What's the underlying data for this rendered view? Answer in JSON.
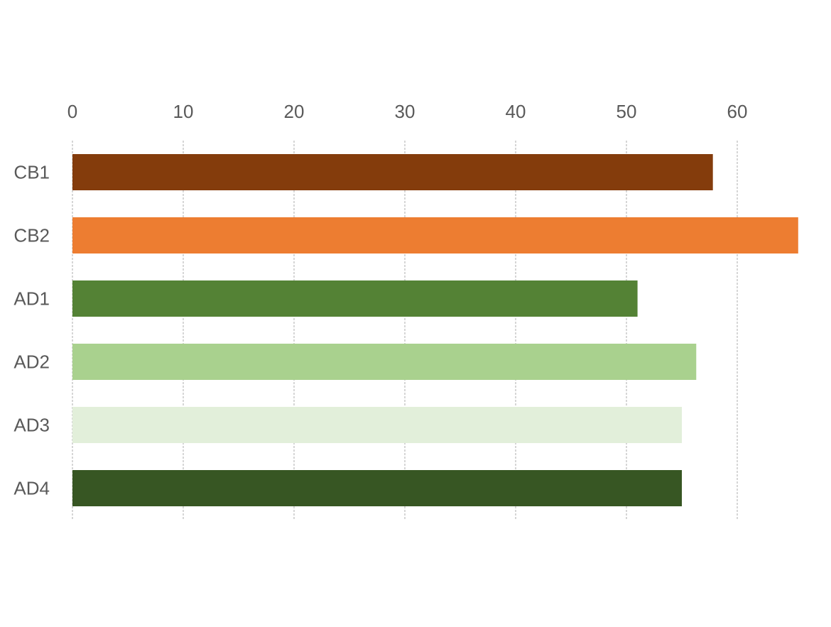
{
  "chart_data": {
    "type": "bar",
    "orientation": "horizontal",
    "categories": [
      "CB1",
      "CB2",
      "AD1",
      "AD2",
      "AD3",
      "AD4"
    ],
    "values": [
      57.8,
      65.5,
      51.0,
      56.3,
      55.0,
      55.0
    ],
    "colors": [
      "#843C0C",
      "#ED7D31",
      "#548235",
      "#A9D18E",
      "#E2EFDA",
      "#375623"
    ],
    "xlim": [
      0,
      65.5
    ],
    "x_ticks": [
      0,
      10,
      20,
      30,
      40,
      50,
      60
    ],
    "x_tick_labels": [
      "0",
      "10",
      "20",
      "30",
      "40",
      "50",
      "60"
    ],
    "x_axis_position": "top",
    "grid": true,
    "legend": "none"
  }
}
